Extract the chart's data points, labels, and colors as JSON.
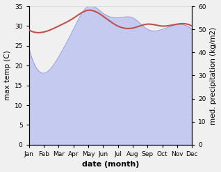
{
  "months": [
    "Jan",
    "Feb",
    "Mar",
    "Apr",
    "May",
    "Jun",
    "Jul",
    "Aug",
    "Sep",
    "Oct",
    "Nov",
    "Dec"
  ],
  "x": [
    0,
    1,
    2,
    3,
    4,
    5,
    6,
    7,
    8,
    9,
    10,
    11
  ],
  "temperature": [
    29.0,
    28.5,
    30.0,
    32.0,
    34.0,
    32.5,
    30.0,
    29.5,
    30.5,
    30.0,
    30.5,
    30.0
  ],
  "precipitation": [
    42,
    31,
    38,
    50,
    60,
    57,
    55,
    55,
    50,
    50,
    52,
    50
  ],
  "temp_color": "#c0504d",
  "precip_fill_color": "#c5caf0",
  "precip_line_color": "#9aa0d8",
  "temp_linewidth": 1.5,
  "ylabel_left": "max temp (C)",
  "ylabel_right": "med. precipitation (kg/m2)",
  "xlabel": "date (month)",
  "ylim_left": [
    0,
    35
  ],
  "ylim_right": [
    0,
    60
  ],
  "yticks_left": [
    0,
    5,
    10,
    15,
    20,
    25,
    30,
    35
  ],
  "yticks_right": [
    0,
    10,
    20,
    30,
    40,
    50,
    60
  ],
  "background_color": "#f0f0f0",
  "plot_bg_color": "#ffffff",
  "label_fontsize": 7.5,
  "tick_fontsize": 6.5
}
